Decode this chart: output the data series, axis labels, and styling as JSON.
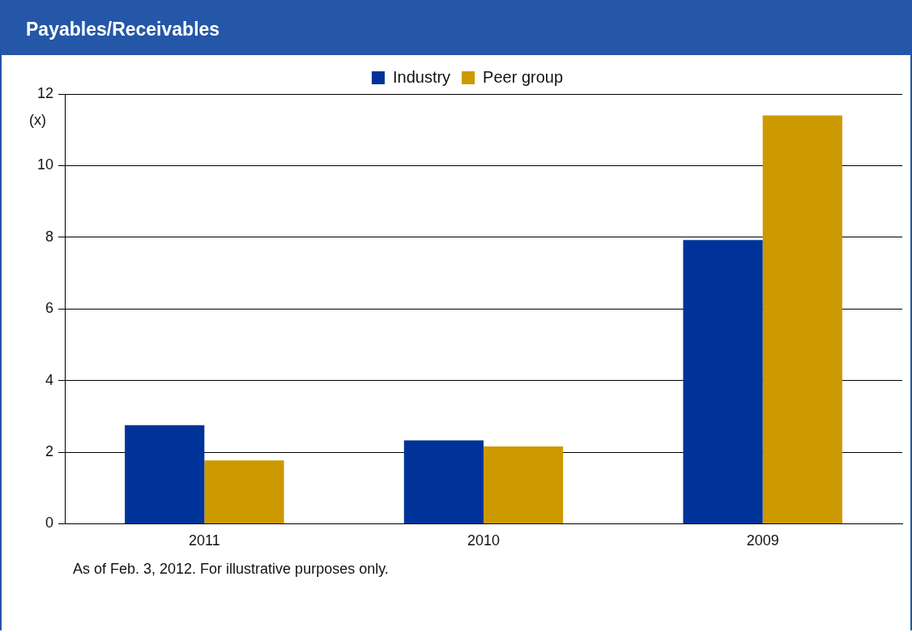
{
  "chart_data": {
    "type": "bar",
    "title": "Payables/Receivables",
    "ylabel": "(x)",
    "categories": [
      "2011",
      "2010",
      "2009"
    ],
    "series": [
      {
        "name": "Industry",
        "color": "#003399",
        "values": [
          2.75,
          2.33,
          7.92
        ]
      },
      {
        "name": "Peer group",
        "color": "#cc9900",
        "values": [
          1.77,
          2.16,
          11.4
        ]
      }
    ],
    "ylim": [
      0,
      12
    ],
    "yticks": [
      0,
      2,
      4,
      6,
      8,
      10,
      12
    ],
    "grid": "y",
    "legend": "top",
    "annotations": [
      "As of Feb. 3, 2012. For illustrative purposes only."
    ]
  }
}
